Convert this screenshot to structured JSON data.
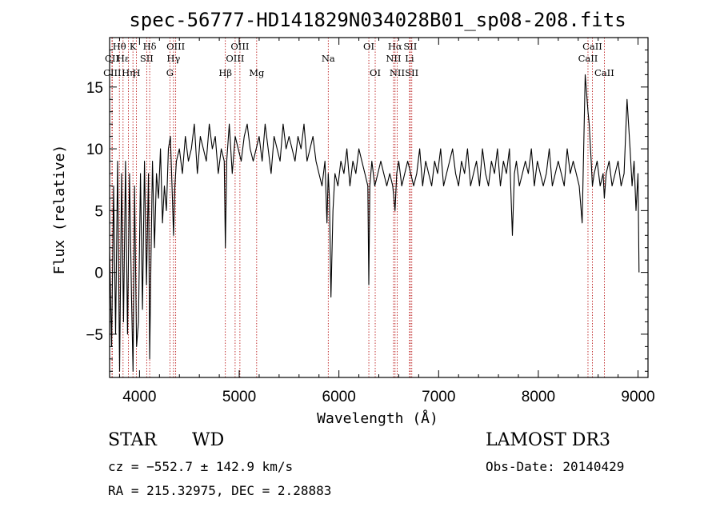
{
  "chart_data": {
    "type": "line",
    "title": "spec-56777-HD141829N034028B01_sp08-208.fits",
    "xlabel": "Wavelength (Å)",
    "ylabel": "Flux (relative)",
    "xlim": [
      3700,
      9100
    ],
    "ylim": [
      -8.5,
      19
    ],
    "xticks": [
      4000,
      5000,
      6000,
      7000,
      8000,
      9000
    ],
    "yticks": [
      -5,
      0,
      5,
      10,
      15
    ],
    "grid": false,
    "series": [
      {
        "name": "flux",
        "x": [
          3700,
          3720,
          3740,
          3760,
          3780,
          3800,
          3820,
          3840,
          3860,
          3880,
          3900,
          3920,
          3935,
          3950,
          3970,
          3990,
          4010,
          4030,
          4050,
          4070,
          4090,
          4102,
          4115,
          4130,
          4150,
          4170,
          4190,
          4210,
          4230,
          4250,
          4270,
          4290,
          4310,
          4330,
          4341,
          4355,
          4370,
          4400,
          4430,
          4460,
          4490,
          4520,
          4550,
          4580,
          4610,
          4640,
          4670,
          4700,
          4730,
          4760,
          4790,
          4820,
          4850,
          4861,
          4875,
          4900,
          4930,
          4960,
          4990,
          5020,
          5050,
          5080,
          5110,
          5140,
          5170,
          5200,
          5230,
          5260,
          5290,
          5320,
          5350,
          5380,
          5410,
          5440,
          5470,
          5500,
          5530,
          5560,
          5590,
          5620,
          5650,
          5680,
          5710,
          5740,
          5770,
          5800,
          5830,
          5860,
          5880,
          5893,
          5905,
          5920,
          5940,
          5960,
          5990,
          6020,
          6050,
          6080,
          6110,
          6140,
          6170,
          6200,
          6230,
          6260,
          6290,
          6300,
          6310,
          6330,
          6360,
          6390,
          6420,
          6450,
          6480,
          6510,
          6540,
          6563,
          6580,
          6600,
          6630,
          6660,
          6690,
          6720,
          6750,
          6780,
          6810,
          6840,
          6870,
          6900,
          6930,
          6960,
          6990,
          7020,
          7050,
          7080,
          7110,
          7140,
          7170,
          7200,
          7230,
          7260,
          7290,
          7320,
          7350,
          7380,
          7410,
          7440,
          7470,
          7500,
          7530,
          7560,
          7590,
          7620,
          7650,
          7680,
          7710,
          7740,
          7760,
          7780,
          7810,
          7840,
          7870,
          7900,
          7930,
          7960,
          7990,
          8020,
          8050,
          8080,
          8110,
          8140,
          8170,
          8200,
          8230,
          8260,
          8290,
          8320,
          8350,
          8380,
          8410,
          8440,
          8470,
          8498,
          8510,
          8530,
          8542,
          8560,
          8590,
          8620,
          8650,
          8662,
          8680,
          8710,
          8740,
          8770,
          8800,
          8830,
          8860,
          8890,
          8920,
          8940,
          8960,
          8980,
          9000,
          9010
        ],
        "y": [
          2,
          -6,
          7,
          -5,
          9,
          -8,
          8,
          -4,
          9,
          -5,
          8,
          -2,
          -8,
          7,
          -6,
          -4,
          8,
          -3,
          9,
          -1,
          8,
          -7,
          1,
          9,
          2,
          8,
          6,
          10,
          4,
          7,
          5,
          10,
          11,
          6,
          3,
          7,
          9,
          10,
          8,
          11,
          9,
          10,
          12,
          8,
          11,
          10,
          9,
          12,
          10,
          11,
          8,
          10,
          9,
          2,
          9,
          12,
          8,
          11,
          10,
          9,
          11,
          12,
          10,
          9,
          10,
          11,
          9,
          12,
          10,
          8,
          11,
          10,
          9,
          12,
          10,
          11,
          10,
          9,
          11,
          10,
          12,
          9,
          10,
          11,
          9,
          8,
          7,
          9,
          4,
          8,
          6,
          -2,
          5,
          8,
          7,
          9,
          8,
          10,
          7,
          9,
          8,
          10,
          9,
          8,
          7,
          -1,
          7,
          9,
          7,
          8,
          9,
          8,
          7,
          8,
          7,
          5,
          8,
          9,
          7,
          8,
          9,
          8,
          7,
          8,
          10,
          7,
          9,
          8,
          7,
          9,
          8,
          10,
          7,
          8,
          9,
          10,
          8,
          7,
          9,
          8,
          10,
          7,
          8,
          9,
          7,
          10,
          8,
          7,
          9,
          8,
          10,
          7,
          9,
          8,
          10,
          3,
          8,
          9,
          7,
          8,
          9,
          8,
          10,
          7,
          9,
          8,
          7,
          8,
          10,
          7,
          8,
          9,
          8,
          7,
          10,
          8,
          9,
          8,
          7,
          4,
          16,
          13,
          12,
          9,
          7,
          8,
          9,
          7,
          8,
          6,
          8,
          9,
          7,
          8,
          9,
          7,
          8,
          14,
          10,
          7,
          9,
          5,
          8,
          0
        ]
      }
    ],
    "spectral_lines": [
      {
        "label": "Hθ",
        "wavelength": 3798,
        "row": 1
      },
      {
        "label": "CII",
        "wavelength": 3724,
        "row": 2
      },
      {
        "label": "CIII",
        "wavelength": 3727,
        "row": 3
      },
      {
        "label": "Hε",
        "wavelength": 3835,
        "row": 2
      },
      {
        "label": "Hη",
        "wavelength": 3889,
        "row": 3
      },
      {
        "label": "K",
        "wavelength": 3934,
        "row": 1
      },
      {
        "label": "H",
        "wavelength": 3969,
        "row": 3
      },
      {
        "label": "SII",
        "wavelength": 4072,
        "row": 2
      },
      {
        "label": "Hδ",
        "wavelength": 4102,
        "row": 1
      },
      {
        "label": "OIII",
        "wavelength": 4363,
        "row": 1
      },
      {
        "label": "Hγ",
        "wavelength": 4341,
        "row": 2
      },
      {
        "label": "G",
        "wavelength": 4305,
        "row": 3
      },
      {
        "label": "Hβ",
        "wavelength": 4861,
        "row": 3
      },
      {
        "label": "OIII",
        "wavelength": 5007,
        "row": 1
      },
      {
        "label": "OIII",
        "wavelength": 4959,
        "row": 2
      },
      {
        "label": "Mg",
        "wavelength": 5175,
        "row": 3
      },
      {
        "label": "Na",
        "wavelength": 5893,
        "row": 2
      },
      {
        "label": "OI",
        "wavelength": 6300,
        "row": 1
      },
      {
        "label": "OI",
        "wavelength": 6364,
        "row": 3
      },
      {
        "label": "Hα",
        "wavelength": 6563,
        "row": 1
      },
      {
        "label": "NII",
        "wavelength": 6548,
        "row": 2
      },
      {
        "label": "NII",
        "wavelength": 6584,
        "row": 3
      },
      {
        "label": "SII",
        "wavelength": 6716,
        "row": 1
      },
      {
        "label": "Li",
        "wavelength": 6708,
        "row": 2
      },
      {
        "label": "SII",
        "wavelength": 6731,
        "row": 3
      },
      {
        "label": "CaII",
        "wavelength": 8542,
        "row": 1
      },
      {
        "label": "CaII",
        "wavelength": 8498,
        "row": 2
      },
      {
        "label": "CaII",
        "wavelength": 8662,
        "row": 3
      }
    ]
  },
  "info": {
    "class_label": "STAR",
    "subclass": "WD",
    "survey": "LAMOST DR3",
    "redshift": "cz = −552.7 ± 142.9 km/s",
    "obs_date": "Obs-Date: 20140429",
    "coords": "RA = 215.32975, DEC =    2.28883"
  },
  "colors": {
    "spectrum": "#000000",
    "line_markers": "#b30000",
    "axes": "#000000"
  }
}
